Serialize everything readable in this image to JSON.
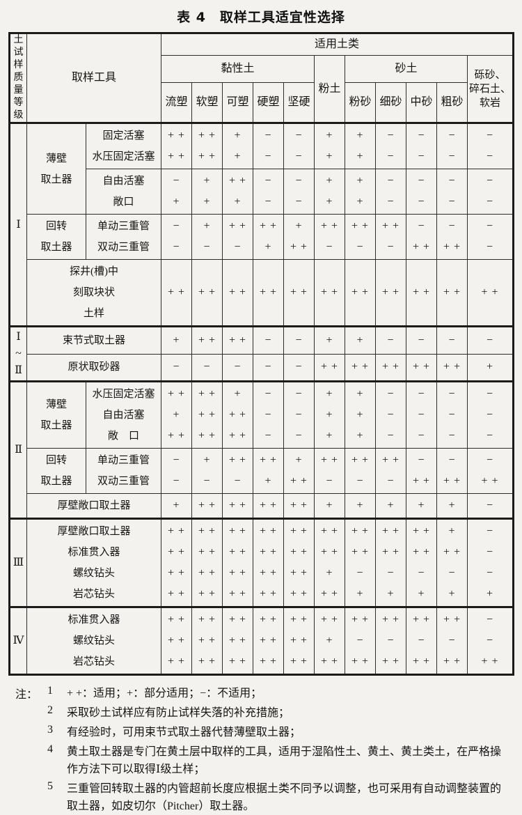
{
  "title": "表 4　取样工具适宜性选择",
  "table": {
    "header_rows": [
      [
        {
          "t": "土试样质量等级",
          "rs": 3,
          "cls": "vert",
          "split": true,
          "lnCls": "vln",
          "name": "quality-grade-header"
        },
        {
          "t": "取样工具",
          "rs": 3,
          "cs": 2,
          "name": "sampling-tool-header"
        },
        {
          "t": "适用土类",
          "cs": 11,
          "name": "applicable-soil-header"
        }
      ],
      [
        {
          "t": "黏性土",
          "cs": 5,
          "name": "clay-soil-header"
        },
        {
          "t": "粉土",
          "rs": 2,
          "name": "silt-header"
        },
        {
          "t": "砂土",
          "cs": 4,
          "name": "sand-header"
        },
        {
          "lines": [
            "砾砂、",
            "碎石土、",
            "软岩"
          ],
          "rs": 2,
          "lnCls": "hln",
          "name": "gravel-rock-header"
        }
      ],
      [
        {
          "t": "流塑",
          "name": "subcol-header"
        },
        {
          "t": "软塑",
          "name": "subcol-header"
        },
        {
          "t": "可塑",
          "name": "subcol-header"
        },
        {
          "t": "硬塑",
          "name": "subcol-header"
        },
        {
          "t": "坚硬",
          "name": "subcol-header"
        },
        {
          "t": "粉砂",
          "name": "subcol-header"
        },
        {
          "t": "细砂",
          "name": "subcol-header"
        },
        {
          "t": "中砂",
          "name": "subcol-header"
        },
        {
          "t": "粗砂",
          "name": "subcol-header"
        }
      ]
    ],
    "groups": [
      {
        "level": [
          "Ⅰ"
        ],
        "blocks": [
          {
            "group": {
              "lines": [
                "薄壁",
                "取土器"
              ],
              "rs": 2
            },
            "tools": [
              "固定活塞",
              "水压固定活塞"
            ],
            "marks": [
              [
                "+ +",
                "+ +",
                "+",
                "−",
                "−",
                "+",
                "+",
                "−",
                "−",
                "−",
                "−"
              ],
              [
                "+ +",
                "+ +",
                "+",
                "−",
                "−",
                "+",
                "+",
                "−",
                "−",
                "−",
                "−"
              ]
            ]
          },
          {
            "tools": [
              "自由活塞",
              "敞口"
            ],
            "marks": [
              [
                "−",
                "+",
                "+ +",
                "−",
                "−",
                "+",
                "+",
                "−",
                "−",
                "−",
                "−"
              ],
              [
                "+",
                "+",
                "+",
                "−",
                "−",
                "+",
                "+",
                "−",
                "−",
                "−",
                "−"
              ]
            ]
          },
          {
            "group": {
              "lines": [
                "回转",
                "取土器"
              ]
            },
            "tools": [
              "单动三重管",
              "双动三重管"
            ],
            "marks": [
              [
                "−",
                "+",
                "+ +",
                "+ +",
                "+",
                "+ +",
                "+ +",
                "+ +",
                "−",
                "−",
                "−"
              ],
              [
                "−",
                "−",
                "−",
                "+",
                "+ +",
                "−",
                "−",
                "−",
                "+ +",
                "+ +",
                "−"
              ]
            ]
          },
          {
            "tools_span": [
              "探井(槽)中",
              "刻取块状",
              "土样"
            ],
            "marks": [
              [
                "+ +",
                "+ +",
                "+ +",
                "+ +",
                "+ +",
                "+ +",
                "+ +",
                "+ +",
                "+ +",
                "+ +",
                "+ +"
              ]
            ]
          }
        ]
      },
      {
        "level": [
          "Ⅰ",
          "~",
          "Ⅱ"
        ],
        "blocks": [
          {
            "tools_span": [
              "束节式取土器"
            ],
            "marks": [
              [
                "+",
                "+ +",
                "+ +",
                "−",
                "−",
                "+",
                "+",
                "−",
                "−",
                "−",
                "−"
              ]
            ]
          },
          {
            "tools_span": [
              "原状取砂器"
            ],
            "marks": [
              [
                "−",
                "−",
                "−",
                "−",
                "−",
                "+ +",
                "+ +",
                "+ +",
                "+ +",
                "+ +",
                "+"
              ]
            ]
          }
        ]
      },
      {
        "level": [
          "Ⅱ"
        ],
        "blocks": [
          {
            "group": {
              "lines": [
                "薄壁",
                "取土器"
              ]
            },
            "tools": [
              "水压固定活塞",
              "自由活塞",
              "敞　口"
            ],
            "marks": [
              [
                "+ +",
                "+ +",
                "+",
                "−",
                "−",
                "+",
                "+",
                "−",
                "−",
                "−",
                "−"
              ],
              [
                "+",
                "+ +",
                "+ +",
                "−",
                "−",
                "+",
                "+",
                "−",
                "−",
                "−",
                "−"
              ],
              [
                "+ +",
                "+ +",
                "+ +",
                "−",
                "−",
                "+",
                "+",
                "−",
                "−",
                "−",
                "−"
              ]
            ]
          },
          {
            "group": {
              "lines": [
                "回转",
                "取土器"
              ]
            },
            "tools": [
              "单动三重管",
              "双动三重管"
            ],
            "marks": [
              [
                "−",
                "+",
                "+ +",
                "+ +",
                "+",
                "+ +",
                "+ +",
                "+ +",
                "−",
                "−",
                "−"
              ],
              [
                "−",
                "−",
                "−",
                "+",
                "+ +",
                "−",
                "−",
                "−",
                "+ +",
                "+ +",
                "+ +"
              ]
            ]
          },
          {
            "tools_span": [
              "厚壁敞口取土器"
            ],
            "marks": [
              [
                "+",
                "+ +",
                "+ +",
                "+ +",
                "+ +",
                "+",
                "+",
                "+",
                "+",
                "+",
                "−"
              ]
            ]
          }
        ]
      },
      {
        "level": [
          "Ⅲ"
        ],
        "blocks": [
          {
            "tools_span": [
              "厚壁敞口取土器",
              "标准贯入器",
              "螺纹钻头",
              "岩芯钻头"
            ],
            "marks": [
              [
                "+ +",
                "+ +",
                "+ +",
                "+ +",
                "+ +",
                "+ +",
                "+ +",
                "+ +",
                "+ +",
                "+",
                "−"
              ],
              [
                "+ +",
                "+ +",
                "+ +",
                "+ +",
                "+ +",
                "+ +",
                "+ +",
                "+ +",
                "+ +",
                "+ +",
                "−"
              ],
              [
                "+ +",
                "+ +",
                "+ +",
                "+ +",
                "+ +",
                "+",
                "−",
                "−",
                "−",
                "−",
                "−"
              ],
              [
                "+ +",
                "+ +",
                "+ +",
                "+ +",
                "+ +",
                "+ +",
                "+",
                "+",
                "+",
                "+",
                "+"
              ]
            ]
          }
        ]
      },
      {
        "level": [
          "Ⅳ"
        ],
        "blocks": [
          {
            "tools_span": [
              "标准贯入器",
              "螺纹钻头",
              "岩芯钻头"
            ],
            "marks": [
              [
                "+ +",
                "+ +",
                "+ +",
                "+ +",
                "+ +",
                "+ +",
                "+ +",
                "+ +",
                "+ +",
                "+ +",
                "−"
              ],
              [
                "+ +",
                "+ +",
                "+ +",
                "+ +",
                "+ +",
                "+",
                "−",
                "−",
                "−",
                "−",
                "−"
              ],
              [
                "+ +",
                "+ +",
                "+ +",
                "+ +",
                "+ +",
                "+ +",
                "+ +",
                "+ +",
                "+ +",
                "+ +",
                "+ +"
              ]
            ]
          }
        ]
      }
    ]
  },
  "legend": {
    "suitable": "+ +：适用",
    "partial": "+：部分适用",
    "unsuitable": "−：不适用"
  },
  "notes": {
    "prefix": "注：",
    "items": [
      {
        "num": "1",
        "text": "+ +：适用；+：部分适用；−：不适用；"
      },
      {
        "num": "2",
        "text": "采取砂土试样应有防止试样失落的补充措施；"
      },
      {
        "num": "3",
        "text": "有经验时，可用束节式取土器代替薄壁取土器；"
      },
      {
        "num": "4",
        "text": "黄土取土器是专门在黄土层中取样的工具，适用于湿陷性土、黄土、黄土类土，在严格操作方法下可以取得Ⅰ级土样；"
      },
      {
        "num": "5",
        "text": "三重管回转取土器的内管超前长度应根据土类不同予以调整，也可采用有自动调整装置的取土器，如皮切尔（Pitcher）取土器。"
      }
    ]
  }
}
